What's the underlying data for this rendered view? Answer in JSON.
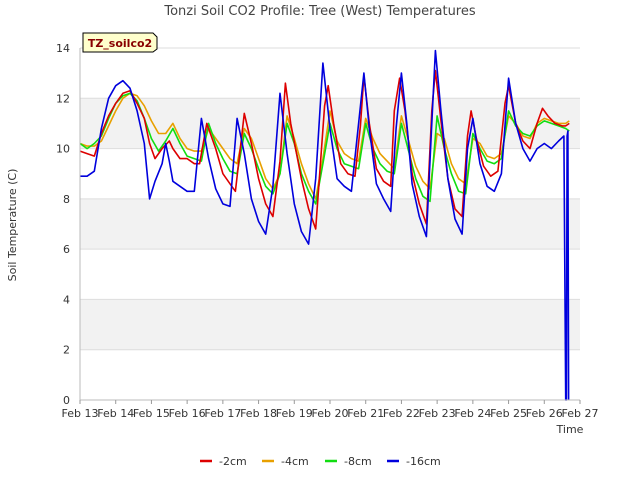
{
  "chart_data": {
    "type": "line",
    "title": "Tonzi Soil CO2 Profile: Tree (West) Temperatures",
    "xlabel": "Time",
    "ylabel": "Soil Temperature (C)",
    "tag": "TZ_soilco2",
    "xlim": [
      13,
      27
    ],
    "ylim": [
      0,
      14
    ],
    "yticks": [
      0,
      2,
      4,
      6,
      8,
      10,
      12,
      14
    ],
    "xticks": [
      {
        "v": 13,
        "label": "Feb 13"
      },
      {
        "v": 14,
        "label": "Feb 14"
      },
      {
        "v": 15,
        "label": "Feb 15"
      },
      {
        "v": 16,
        "label": "Feb 16"
      },
      {
        "v": 17,
        "label": "Feb 17"
      },
      {
        "v": 18,
        "label": "Feb 18"
      },
      {
        "v": 19,
        "label": "Feb 19"
      },
      {
        "v": 20,
        "label": "Feb 20"
      },
      {
        "v": 21,
        "label": "Feb 21"
      },
      {
        "v": 22,
        "label": "Feb 22"
      },
      {
        "v": 23,
        "label": "Feb 23"
      },
      {
        "v": 24,
        "label": "Feb 24"
      },
      {
        "v": 25,
        "label": "Feb 25"
      },
      {
        "v": 26,
        "label": "Feb 26"
      },
      {
        "v": 27,
        "label": "Feb 27"
      }
    ],
    "series": [
      {
        "name": "-2cm",
        "color": "#dd0000",
        "points": [
          [
            13.0,
            9.9
          ],
          [
            13.2,
            9.8
          ],
          [
            13.4,
            9.7
          ],
          [
            13.6,
            10.6
          ],
          [
            13.8,
            11.3
          ],
          [
            14.0,
            11.8
          ],
          [
            14.2,
            12.2
          ],
          [
            14.4,
            12.3
          ],
          [
            14.6,
            11.8
          ],
          [
            14.8,
            11.2
          ],
          [
            14.95,
            10.2
          ],
          [
            15.1,
            9.6
          ],
          [
            15.3,
            10.0
          ],
          [
            15.5,
            10.3
          ],
          [
            15.6,
            10.0
          ],
          [
            15.8,
            9.6
          ],
          [
            16.0,
            9.6
          ],
          [
            16.2,
            9.4
          ],
          [
            16.35,
            9.4
          ],
          [
            16.55,
            11.0
          ],
          [
            16.8,
            10.0
          ],
          [
            17.0,
            9.0
          ],
          [
            17.2,
            8.6
          ],
          [
            17.35,
            8.3
          ],
          [
            17.6,
            11.4
          ],
          [
            17.8,
            10.2
          ],
          [
            18.0,
            8.8
          ],
          [
            18.2,
            7.8
          ],
          [
            18.4,
            7.3
          ],
          [
            18.6,
            9.5
          ],
          [
            18.75,
            12.6
          ],
          [
            18.9,
            11.0
          ],
          [
            19.2,
            8.8
          ],
          [
            19.4,
            7.6
          ],
          [
            19.6,
            6.8
          ],
          [
            19.85,
            11.7
          ],
          [
            19.95,
            12.5
          ],
          [
            20.1,
            11.0
          ],
          [
            20.3,
            9.4
          ],
          [
            20.5,
            9.0
          ],
          [
            20.7,
            8.9
          ],
          [
            20.85,
            10.9
          ],
          [
            20.95,
            12.9
          ],
          [
            21.1,
            11.0
          ],
          [
            21.3,
            9.2
          ],
          [
            21.5,
            8.7
          ],
          [
            21.7,
            8.5
          ],
          [
            21.8,
            11.5
          ],
          [
            21.95,
            12.8
          ],
          [
            22.1,
            11.5
          ],
          [
            22.3,
            9.0
          ],
          [
            22.5,
            7.8
          ],
          [
            22.7,
            7.0
          ],
          [
            22.85,
            11.5
          ],
          [
            22.95,
            13.1
          ],
          [
            23.1,
            11.2
          ],
          [
            23.3,
            8.8
          ],
          [
            23.5,
            7.6
          ],
          [
            23.7,
            7.3
          ],
          [
            23.85,
            10.5
          ],
          [
            23.95,
            11.5
          ],
          [
            24.1,
            10.4
          ],
          [
            24.3,
            9.3
          ],
          [
            24.5,
            8.9
          ],
          [
            24.7,
            9.1
          ],
          [
            24.9,
            11.8
          ],
          [
            25.0,
            12.5
          ],
          [
            25.2,
            11.0
          ],
          [
            25.4,
            10.3
          ],
          [
            25.6,
            10.0
          ],
          [
            25.8,
            11.0
          ],
          [
            25.95,
            11.6
          ],
          [
            26.1,
            11.3
          ],
          [
            26.3,
            11.0
          ],
          [
            26.5,
            10.9
          ],
          [
            26.6,
            10.9
          ],
          [
            26.7,
            11.0
          ]
        ]
      },
      {
        "name": "-4cm",
        "color": "#e8a000",
        "points": [
          [
            13.0,
            10.2
          ],
          [
            13.2,
            10.1
          ],
          [
            13.4,
            10.1
          ],
          [
            13.6,
            10.3
          ],
          [
            13.8,
            10.9
          ],
          [
            14.0,
            11.5
          ],
          [
            14.2,
            12.0
          ],
          [
            14.4,
            12.2
          ],
          [
            14.6,
            12.1
          ],
          [
            14.8,
            11.7
          ],
          [
            15.0,
            11.1
          ],
          [
            15.2,
            10.6
          ],
          [
            15.4,
            10.6
          ],
          [
            15.6,
            11.0
          ],
          [
            15.8,
            10.4
          ],
          [
            16.0,
            10.0
          ],
          [
            16.2,
            9.9
          ],
          [
            16.4,
            9.9
          ],
          [
            16.6,
            10.8
          ],
          [
            16.8,
            10.4
          ],
          [
            17.0,
            10.0
          ],
          [
            17.2,
            9.6
          ],
          [
            17.4,
            9.4
          ],
          [
            17.6,
            10.8
          ],
          [
            17.8,
            10.4
          ],
          [
            18.0,
            9.6
          ],
          [
            18.2,
            8.8
          ],
          [
            18.4,
            8.4
          ],
          [
            18.6,
            9.0
          ],
          [
            18.8,
            11.3
          ],
          [
            19.0,
            10.4
          ],
          [
            19.2,
            9.4
          ],
          [
            19.4,
            8.6
          ],
          [
            19.6,
            8.0
          ],
          [
            19.8,
            9.6
          ],
          [
            20.0,
            11.5
          ],
          [
            20.2,
            10.3
          ],
          [
            20.4,
            9.8
          ],
          [
            20.6,
            9.6
          ],
          [
            20.8,
            9.5
          ],
          [
            21.0,
            11.2
          ],
          [
            21.2,
            10.4
          ],
          [
            21.4,
            9.8
          ],
          [
            21.6,
            9.5
          ],
          [
            21.8,
            9.2
          ],
          [
            22.0,
            11.3
          ],
          [
            22.2,
            10.3
          ],
          [
            22.4,
            9.3
          ],
          [
            22.6,
            8.7
          ],
          [
            22.8,
            8.4
          ],
          [
            23.0,
            10.6
          ],
          [
            23.2,
            10.4
          ],
          [
            23.4,
            9.4
          ],
          [
            23.6,
            8.8
          ],
          [
            23.8,
            8.6
          ],
          [
            24.0,
            10.4
          ],
          [
            24.2,
            10.2
          ],
          [
            24.4,
            9.7
          ],
          [
            24.6,
            9.6
          ],
          [
            24.8,
            9.8
          ],
          [
            25.0,
            11.3
          ],
          [
            25.2,
            11.0
          ],
          [
            25.4,
            10.5
          ],
          [
            25.6,
            10.4
          ],
          [
            25.8,
            11.0
          ],
          [
            26.0,
            11.2
          ],
          [
            26.2,
            11.1
          ],
          [
            26.4,
            11.0
          ],
          [
            26.6,
            11.0
          ],
          [
            26.7,
            11.1
          ]
        ]
      },
      {
        "name": "-8cm",
        "color": "#11dd11",
        "points": [
          [
            13.0,
            10.2
          ],
          [
            13.2,
            10.0
          ],
          [
            13.4,
            10.2
          ],
          [
            13.6,
            10.5
          ],
          [
            13.8,
            11.2
          ],
          [
            14.0,
            11.8
          ],
          [
            14.2,
            12.1
          ],
          [
            14.4,
            12.2
          ],
          [
            14.6,
            11.9
          ],
          [
            14.8,
            11.2
          ],
          [
            15.0,
            10.4
          ],
          [
            15.2,
            9.9
          ],
          [
            15.4,
            10.3
          ],
          [
            15.6,
            10.8
          ],
          [
            15.8,
            10.2
          ],
          [
            16.0,
            9.7
          ],
          [
            16.2,
            9.6
          ],
          [
            16.4,
            9.5
          ],
          [
            16.6,
            11.0
          ],
          [
            16.8,
            10.2
          ],
          [
            17.0,
            9.6
          ],
          [
            17.2,
            9.1
          ],
          [
            17.4,
            9.0
          ],
          [
            17.6,
            10.6
          ],
          [
            17.8,
            10.0
          ],
          [
            18.0,
            9.2
          ],
          [
            18.2,
            8.5
          ],
          [
            18.4,
            8.2
          ],
          [
            18.6,
            9.0
          ],
          [
            18.8,
            11.0
          ],
          [
            19.0,
            10.2
          ],
          [
            19.2,
            9.0
          ],
          [
            19.4,
            8.3
          ],
          [
            19.6,
            7.8
          ],
          [
            19.8,
            9.4
          ],
          [
            20.0,
            11.0
          ],
          [
            20.2,
            10.0
          ],
          [
            20.4,
            9.4
          ],
          [
            20.6,
            9.3
          ],
          [
            20.8,
            9.2
          ],
          [
            21.0,
            11.0
          ],
          [
            21.2,
            10.0
          ],
          [
            21.4,
            9.4
          ],
          [
            21.6,
            9.1
          ],
          [
            21.8,
            9.0
          ],
          [
            22.0,
            11.0
          ],
          [
            22.2,
            9.9
          ],
          [
            22.4,
            8.8
          ],
          [
            22.6,
            8.1
          ],
          [
            22.8,
            7.9
          ],
          [
            23.0,
            11.3
          ],
          [
            23.2,
            10.0
          ],
          [
            23.4,
            9.0
          ],
          [
            23.6,
            8.3
          ],
          [
            23.8,
            8.2
          ],
          [
            24.0,
            10.6
          ],
          [
            24.2,
            10.0
          ],
          [
            24.4,
            9.5
          ],
          [
            24.6,
            9.4
          ],
          [
            24.8,
            9.6
          ],
          [
            25.0,
            11.5
          ],
          [
            25.2,
            10.9
          ],
          [
            25.4,
            10.6
          ],
          [
            25.6,
            10.5
          ],
          [
            25.8,
            10.9
          ],
          [
            26.0,
            11.1
          ],
          [
            26.2,
            11.0
          ],
          [
            26.4,
            10.9
          ],
          [
            26.6,
            10.8
          ],
          [
            26.7,
            10.7
          ]
        ]
      },
      {
        "name": "-16cm",
        "color": "#0000dd",
        "points": [
          [
            13.0,
            8.9
          ],
          [
            13.2,
            8.9
          ],
          [
            13.4,
            9.1
          ],
          [
            13.6,
            10.8
          ],
          [
            13.8,
            12.0
          ],
          [
            14.0,
            12.5
          ],
          [
            14.2,
            12.7
          ],
          [
            14.4,
            12.4
          ],
          [
            14.6,
            11.5
          ],
          [
            14.8,
            10.2
          ],
          [
            14.95,
            8.0
          ],
          [
            15.1,
            8.7
          ],
          [
            15.3,
            9.4
          ],
          [
            15.4,
            10.2
          ],
          [
            15.5,
            9.5
          ],
          [
            15.6,
            8.7
          ],
          [
            15.8,
            8.5
          ],
          [
            16.0,
            8.3
          ],
          [
            16.2,
            8.3
          ],
          [
            16.4,
            11.2
          ],
          [
            16.6,
            9.6
          ],
          [
            16.8,
            8.4
          ],
          [
            17.0,
            7.8
          ],
          [
            17.2,
            7.7
          ],
          [
            17.4,
            11.2
          ],
          [
            17.6,
            9.8
          ],
          [
            17.8,
            8.0
          ],
          [
            18.0,
            7.1
          ],
          [
            18.2,
            6.6
          ],
          [
            18.4,
            8.5
          ],
          [
            18.6,
            12.2
          ],
          [
            18.8,
            9.8
          ],
          [
            19.0,
            7.8
          ],
          [
            19.2,
            6.7
          ],
          [
            19.4,
            6.2
          ],
          [
            19.6,
            8.8
          ],
          [
            19.8,
            13.4
          ],
          [
            20.0,
            10.8
          ],
          [
            20.2,
            8.8
          ],
          [
            20.4,
            8.5
          ],
          [
            20.6,
            8.3
          ],
          [
            20.8,
            11.0
          ],
          [
            20.95,
            13.0
          ],
          [
            21.1,
            10.8
          ],
          [
            21.3,
            8.6
          ],
          [
            21.5,
            8.0
          ],
          [
            21.7,
            7.5
          ],
          [
            21.85,
            10.8
          ],
          [
            22.0,
            13.0
          ],
          [
            22.15,
            11.0
          ],
          [
            22.3,
            8.6
          ],
          [
            22.5,
            7.3
          ],
          [
            22.7,
            6.5
          ],
          [
            22.85,
            11.0
          ],
          [
            22.95,
            13.9
          ],
          [
            23.1,
            11.6
          ],
          [
            23.3,
            8.8
          ],
          [
            23.5,
            7.2
          ],
          [
            23.7,
            6.6
          ],
          [
            23.85,
            10.0
          ],
          [
            24.0,
            11.2
          ],
          [
            24.2,
            9.4
          ],
          [
            24.4,
            8.5
          ],
          [
            24.6,
            8.3
          ],
          [
            24.8,
            9.0
          ],
          [
            25.0,
            12.8
          ],
          [
            25.2,
            11.0
          ],
          [
            25.4,
            10.0
          ],
          [
            25.6,
            9.5
          ],
          [
            25.8,
            10.0
          ],
          [
            26.0,
            10.2
          ],
          [
            26.2,
            10.0
          ],
          [
            26.4,
            10.3
          ],
          [
            26.55,
            10.5
          ],
          [
            26.6,
            0.0
          ],
          [
            26.62,
            0.0
          ],
          [
            26.64,
            10.5
          ],
          [
            26.66,
            10.7
          ],
          [
            26.68,
            0.0
          ]
        ]
      }
    ],
    "legend_position": "bottom",
    "grid": "alternating horizontal bands"
  }
}
